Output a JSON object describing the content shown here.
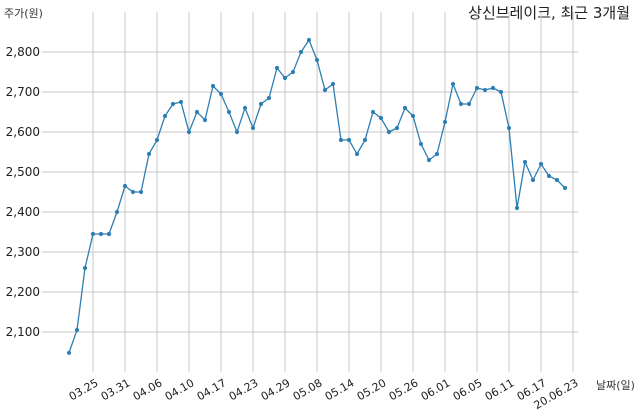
{
  "chart_data": {
    "type": "line",
    "title": "상신브레이크, 최근 3개월",
    "ylabel": "주가(원)",
    "xlabel": "날짜(일)",
    "ylim": [
      2000,
      2900
    ],
    "y_ticks": [
      2100,
      2200,
      2300,
      2400,
      2500,
      2600,
      2700,
      2800
    ],
    "y_tick_labels": [
      "2,100",
      "2,200",
      "2,300",
      "2,400",
      "2,500",
      "2,600",
      "2,700",
      "2,800"
    ],
    "x_tick_labels": [
      "03.25",
      "03.31",
      "04.06",
      "04.10",
      "04.17",
      "04.23",
      "04.29",
      "05.08",
      "05.14",
      "05.20",
      "05.26",
      "06.01",
      "06.05",
      "06.11",
      "06.17",
      "20.06.23"
    ],
    "x_tick_positions": [
      3,
      7,
      11,
      15,
      19,
      23,
      27,
      31,
      35,
      39,
      43,
      47,
      51,
      55,
      59,
      63
    ],
    "grid": true,
    "line_color": "#2e7eb3",
    "series": [
      {
        "values": [
          2048,
          2105,
          2260,
          2345,
          2345,
          2345,
          2400,
          2465,
          2450,
          2450,
          2545,
          2580,
          2640,
          2670,
          2675,
          2600,
          2650,
          2630,
          2715,
          2695,
          2650,
          2600,
          2660,
          2610,
          2670,
          2685,
          2760,
          2735,
          2750,
          2800,
          2830,
          2780,
          2705,
          2720,
          2580,
          2580,
          2545,
          2580,
          2650,
          2635,
          2600,
          2610,
          2660,
          2640,
          2570,
          2530,
          2545,
          2625,
          2720,
          2670,
          2670,
          2710,
          2705,
          2710,
          2700,
          2610,
          2410,
          2525,
          2480,
          2520,
          2490,
          2480,
          2460
        ]
      }
    ]
  }
}
